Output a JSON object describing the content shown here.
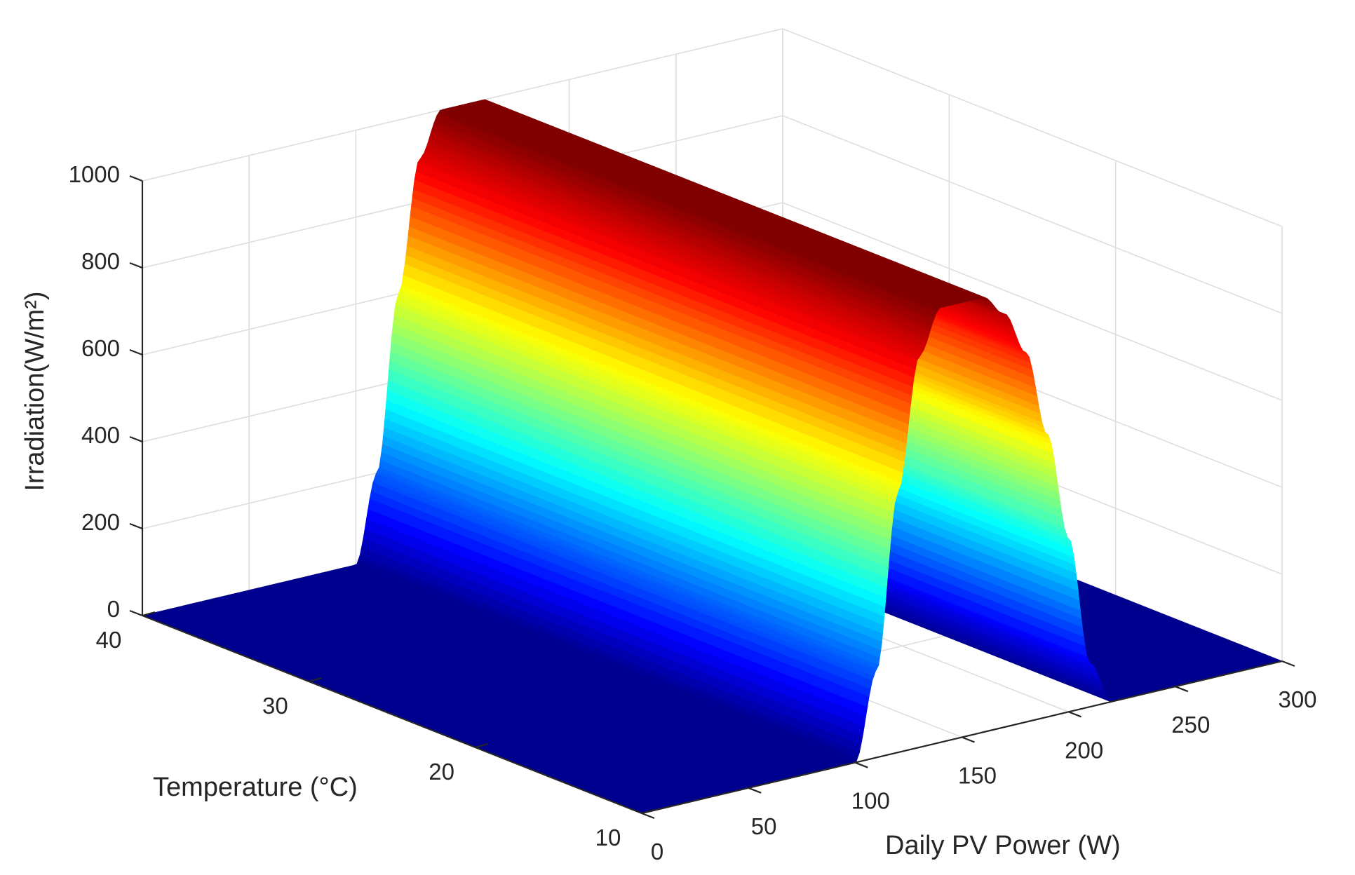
{
  "chart_data": {
    "type": "surface",
    "title": "",
    "xlabel": "Daily PV Power (W)",
    "ylabel": "Temperature (°C)",
    "zlabel": "Irradiation(W/m²)",
    "xlim": [
      0,
      300
    ],
    "ylim": [
      10,
      40
    ],
    "zlim": [
      0,
      1000
    ],
    "x_ticks": [
      "0",
      "50",
      "100",
      "150",
      "200",
      "250",
      "300"
    ],
    "y_ticks": [
      "10",
      "20",
      "30",
      "40"
    ],
    "z_ticks": [
      "0",
      "200",
      "400",
      "600",
      "800",
      "1000"
    ],
    "grid": true,
    "colormap": "jet",
    "colormap_stops": [
      "#00008f",
      "#0000ff",
      "#00ffff",
      "#ffff00",
      "#ff0000",
      "#800000"
    ],
    "surface_profile": {
      "description_axis": "Irradiation versus Daily PV Power, constant along Temperature",
      "x": [
        0,
        20,
        40,
        60,
        80,
        100,
        110,
        120,
        130,
        140,
        150,
        160,
        170,
        180,
        190,
        200,
        210,
        220,
        230,
        240,
        260,
        280,
        300
      ],
      "z": [
        0,
        0,
        0,
        0,
        0,
        0,
        200,
        600,
        900,
        1000,
        1000,
        1000,
        950,
        850,
        650,
        400,
        100,
        0,
        0,
        0,
        0,
        0,
        0
      ]
    }
  }
}
